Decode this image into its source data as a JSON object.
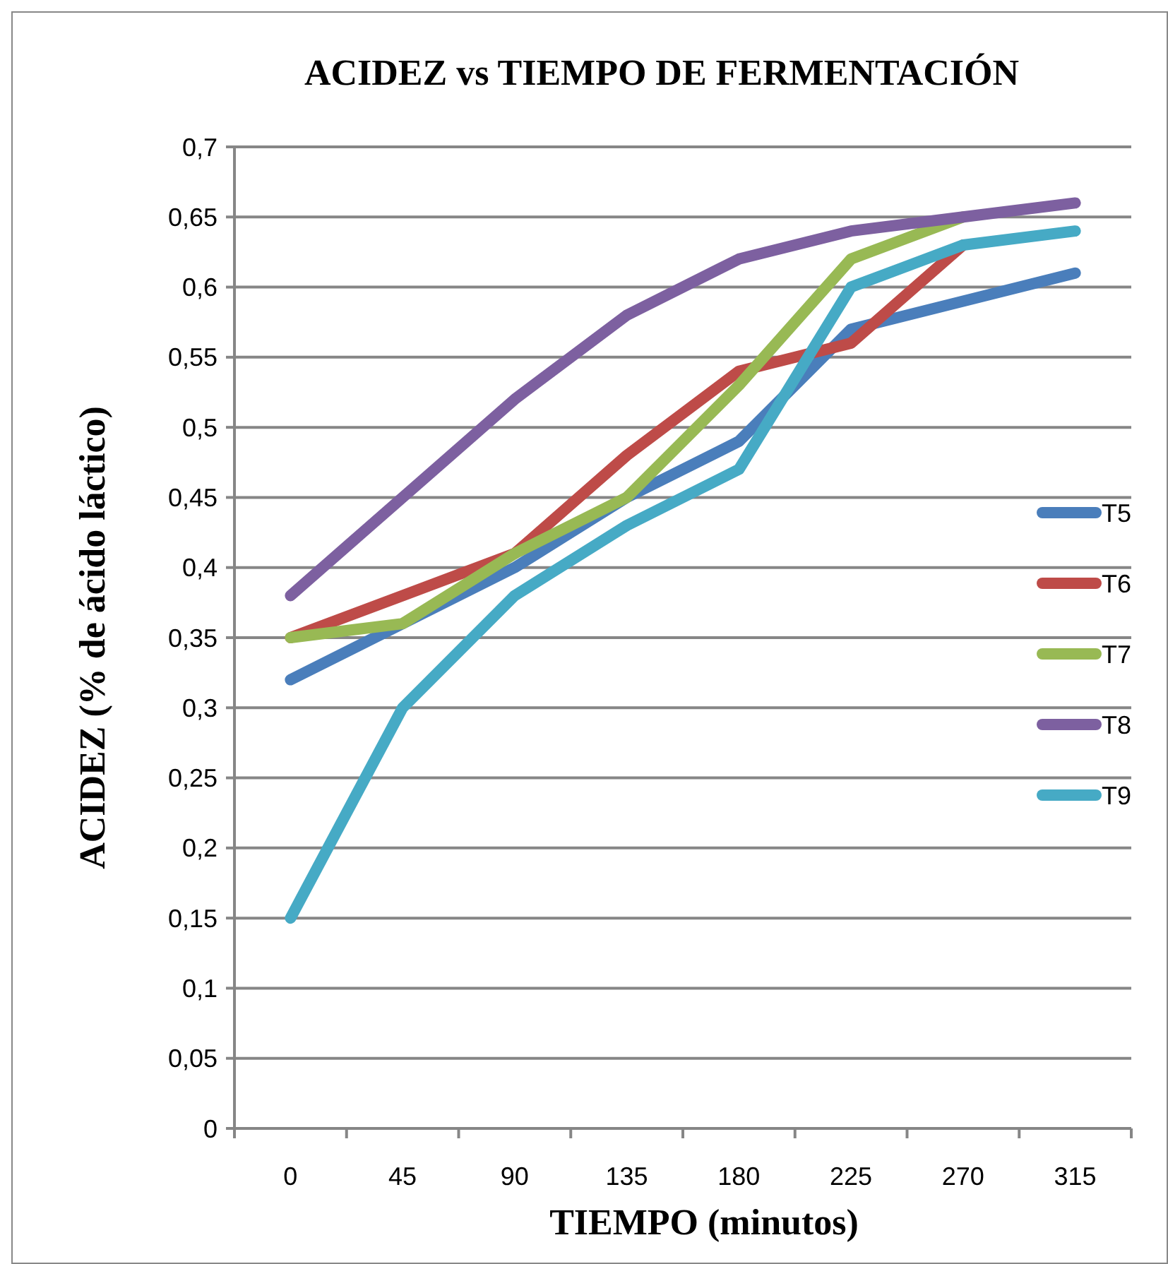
{
  "chart_data": {
    "type": "line",
    "title": "ACIDEZ  vs TIEMPO DE FERMENTACIÓN",
    "xlabel": "TIEMPO (minutos)",
    "ylabel": "ACIDEZ (% de ácido láctico)",
    "categories": [
      "0",
      "45",
      "90",
      "135",
      "180",
      "225",
      "270",
      "315"
    ],
    "series": [
      {
        "name": "T5",
        "color": "#4a7ebb",
        "values": [
          0.32,
          0.36,
          0.4,
          0.45,
          0.49,
          0.57,
          0.59,
          0.61
        ]
      },
      {
        "name": "T6",
        "color": "#be4b48",
        "values": [
          0.35,
          0.38,
          0.41,
          0.48,
          0.54,
          0.56,
          0.63,
          null
        ]
      },
      {
        "name": "T7",
        "color": "#98b954",
        "values": [
          0.35,
          0.36,
          0.41,
          0.45,
          0.53,
          0.62,
          0.65,
          null
        ]
      },
      {
        "name": "T8",
        "color": "#7d60a0",
        "values": [
          0.38,
          0.45,
          0.52,
          0.58,
          0.62,
          0.64,
          0.65,
          0.66
        ]
      },
      {
        "name": "T9",
        "color": "#46aac5",
        "values": [
          0.15,
          0.3,
          0.38,
          0.43,
          0.47,
          0.6,
          0.63,
          0.64
        ]
      }
    ],
    "ylim": [
      0,
      0.7
    ],
    "yticks": [
      0,
      {
        "value": 0.05,
        "label": "0,05"
      },
      {
        "value": 0.1,
        "label": "0,1"
      },
      {
        "value": 0.15,
        "label": "0,15"
      },
      {
        "value": 0.2,
        "label": "0,2"
      },
      {
        "value": 0.25,
        "label": "0,25"
      },
      {
        "value": 0.3,
        "label": "0,3"
      },
      {
        "value": 0.35,
        "label": "0,35"
      },
      {
        "value": 0.4,
        "label": "0,4"
      },
      {
        "value": 0.45,
        "label": "0,45"
      },
      {
        "value": 0.5,
        "label": "0,5"
      },
      {
        "value": 0.55,
        "label": "0,55"
      },
      {
        "value": 0.6,
        "label": "0,6"
      },
      {
        "value": 0.65,
        "label": "0,65"
      },
      {
        "value": 0.7,
        "label": "0,7"
      }
    ],
    "grid": "y",
    "legend": "right",
    "marker": "none",
    "line_style": "solid"
  }
}
